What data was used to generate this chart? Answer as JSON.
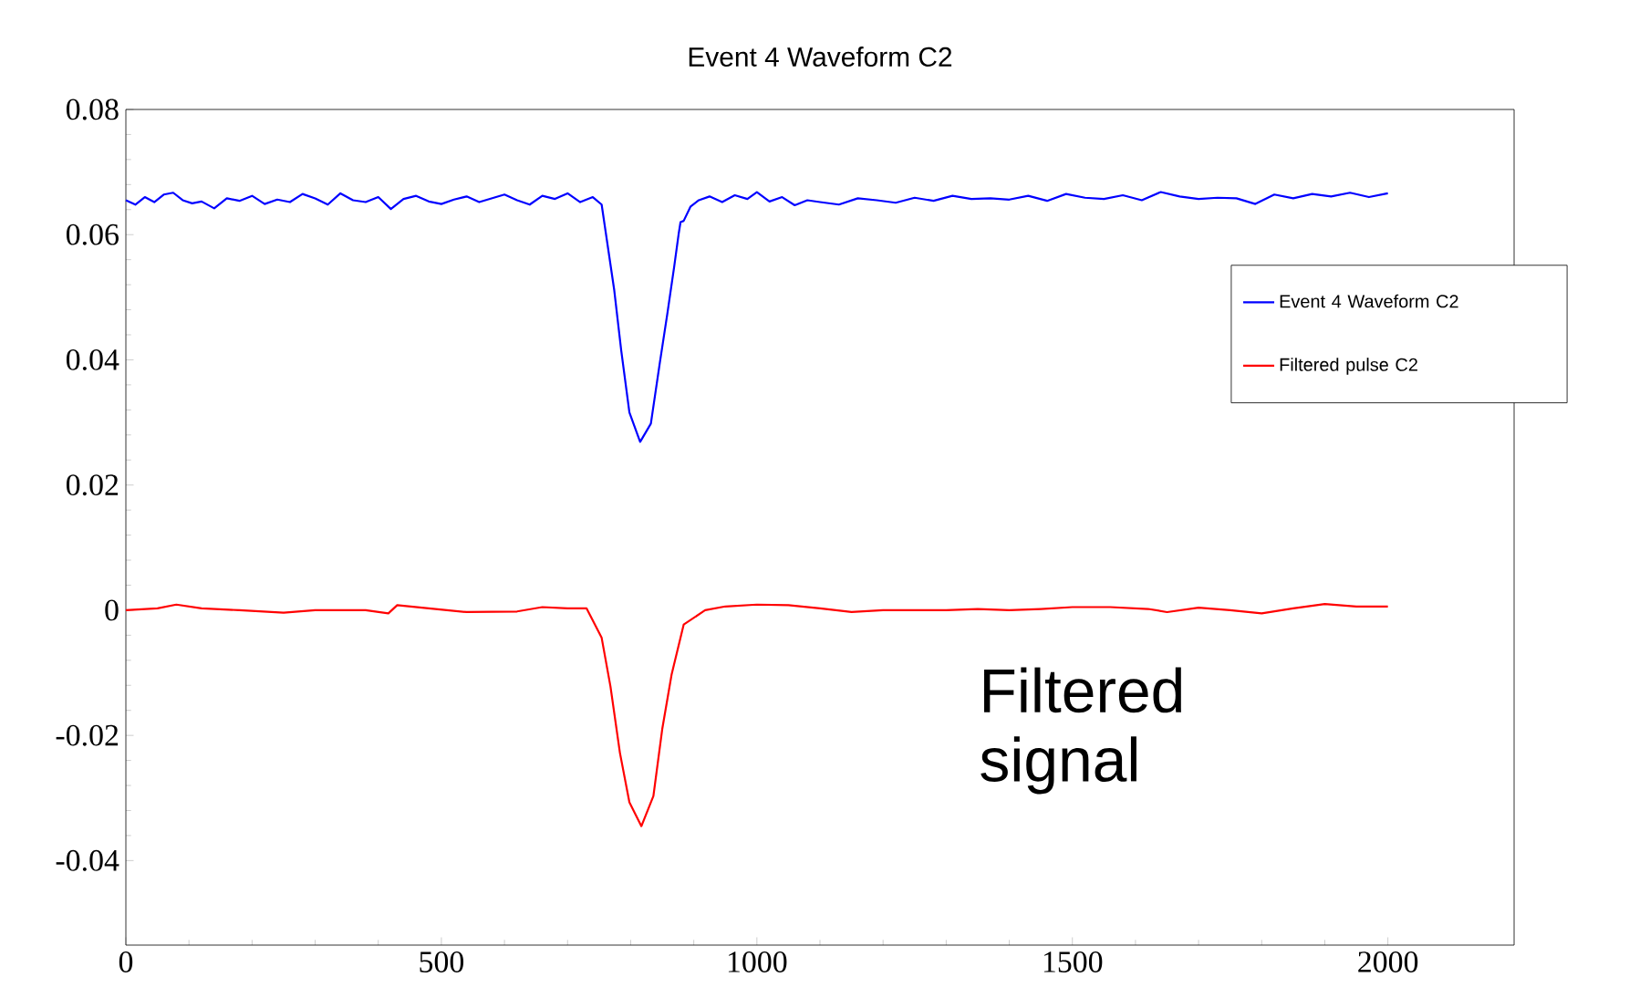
{
  "chart_data": {
    "type": "line",
    "title": "Event 4 Waveform C2",
    "xlim": [
      0,
      2200
    ],
    "ylim": [
      -0.0535,
      0.08
    ],
    "xticks": [
      0,
      500,
      1000,
      1500,
      2000
    ],
    "yticks": [
      -0.04,
      -0.02,
      0,
      0.02,
      0.04,
      0.06,
      0.08
    ],
    "legend": "right",
    "annotations": [
      "Filtered signal"
    ],
    "series": [
      {
        "name": "Event 4 Waveform C2",
        "color": "#0000ff",
        "x": [
          0,
          15,
          30,
          45,
          60,
          75,
          90,
          105,
          120,
          140,
          160,
          180,
          200,
          220,
          240,
          260,
          280,
          300,
          320,
          340,
          360,
          380,
          400,
          420,
          440,
          460,
          480,
          500,
          520,
          540,
          560,
          580,
          600,
          620,
          640,
          660,
          680,
          700,
          720,
          740,
          754,
          774,
          785,
          798,
          815,
          832,
          846,
          858,
          869,
          876,
          879,
          884,
          895,
          908,
          925,
          945,
          965,
          985,
          1000,
          1020,
          1040,
          1060,
          1080,
          1100,
          1130,
          1160,
          1190,
          1220,
          1250,
          1280,
          1310,
          1340,
          1370,
          1400,
          1430,
          1460,
          1490,
          1520,
          1550,
          1580,
          1610,
          1640,
          1670,
          1700,
          1730,
          1760,
          1790,
          1820,
          1850,
          1880,
          1910,
          1940,
          1970,
          2000
        ],
        "values": [
          0.0655,
          0.0648,
          0.066,
          0.0652,
          0.0664,
          0.0667,
          0.0655,
          0.065,
          0.0653,
          0.0642,
          0.0658,
          0.0654,
          0.0662,
          0.0649,
          0.0656,
          0.0652,
          0.0665,
          0.0658,
          0.0648,
          0.0666,
          0.0655,
          0.0652,
          0.066,
          0.0641,
          0.0657,
          0.0662,
          0.0653,
          0.0649,
          0.0656,
          0.0661,
          0.0652,
          0.0658,
          0.0664,
          0.0655,
          0.0648,
          0.0662,
          0.0657,
          0.0666,
          0.0652,
          0.066,
          0.0648,
          0.0511,
          0.0415,
          0.0316,
          0.0269,
          0.0298,
          0.0394,
          0.0473,
          0.0549,
          0.0601,
          0.062,
          0.0622,
          0.0645,
          0.0655,
          0.0661,
          0.0652,
          0.0663,
          0.0657,
          0.0668,
          0.0653,
          0.066,
          0.0647,
          0.0655,
          0.0652,
          0.0648,
          0.0658,
          0.0655,
          0.0651,
          0.0659,
          0.0654,
          0.0662,
          0.0657,
          0.0658,
          0.0656,
          0.0662,
          0.0654,
          0.0665,
          0.0659,
          0.0657,
          0.0663,
          0.0655,
          0.0668,
          0.0661,
          0.0657,
          0.0659,
          0.0658,
          0.0649,
          0.0664,
          0.0658,
          0.0665,
          0.0661,
          0.0667,
          0.066,
          0.0666
        ]
      },
      {
        "name": "Filtered pulse C2",
        "color": "#ff0000",
        "x": [
          0,
          50,
          80,
          120,
          180,
          250,
          300,
          380,
          416,
          430,
          480,
          540,
          620,
          660,
          700,
          730,
          754,
          768,
          783,
          798,
          817,
          836,
          850,
          865,
          884,
          918,
          950,
          1000,
          1050,
          1100,
          1150,
          1200,
          1300,
          1350,
          1400,
          1450,
          1500,
          1560,
          1620,
          1650,
          1700,
          1750,
          1800,
          1850,
          1900,
          1950,
          2000
        ],
        "values": [
          0,
          0.0003,
          0.0009,
          0.0003,
          0,
          -0.0004,
          0,
          0,
          -0.0005,
          0.0008,
          0.0003,
          -0.0003,
          -0.0002,
          0.0005,
          0.0003,
          0.0003,
          -0.0044,
          -0.0122,
          -0.0228,
          -0.0307,
          -0.0345,
          -0.0297,
          -0.019,
          -0.0102,
          -0.0023,
          0,
          0.0006,
          0.0009,
          0.0008,
          0.0003,
          -0.0003,
          0,
          0,
          0.0002,
          0,
          0.0002,
          0.0005,
          0.0005,
          0.0002,
          -0.0003,
          0.0004,
          0,
          -0.0005,
          0.0003,
          0.001,
          0.0006,
          0.0006
        ]
      }
    ]
  }
}
